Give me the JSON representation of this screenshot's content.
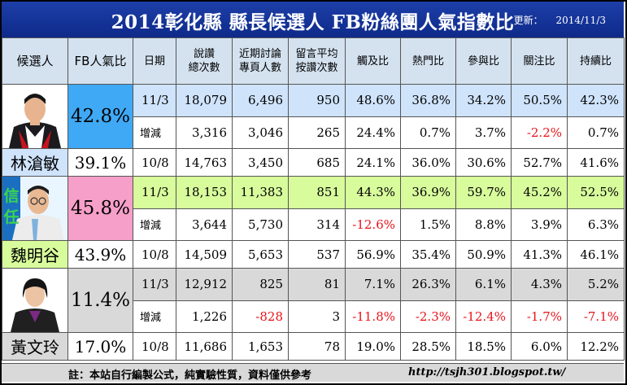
{
  "header": {
    "title": "2014彰化縣 縣長候選人 FB粉絲團人氣指數比",
    "update_label": "更新：",
    "update_date": "2014/11/3"
  },
  "columns": [
    "候選人",
    "FB人氣比",
    "日期",
    "說讚\n總次數",
    "近期討論\n專頁人數",
    "留言平均\n按讚次數",
    "觸及比",
    "熱門比",
    "參與比",
    "關注比",
    "持續比"
  ],
  "candidates": [
    {
      "name": "林滄敏",
      "fb_current": "42.8%",
      "fb_previous": "39.1%",
      "row_color": "#cfe3fb",
      "fb_color": "#3fa9f5",
      "current": {
        "date": "11/3",
        "values": [
          "18,079",
          "6,496",
          "950",
          "48.6%",
          "36.8%",
          "34.2%",
          "50.5%",
          "42.3%"
        ]
      },
      "change": {
        "label": "增減",
        "values": [
          "3,316",
          "3,046",
          "265",
          "24.4%",
          "0.7%",
          "3.7%",
          "-2.2%",
          "0.7%"
        ]
      },
      "previous": {
        "date": "10/8",
        "values": [
          "14,763",
          "3,450",
          "685",
          "24.1%",
          "36.0%",
          "30.6%",
          "52.7%",
          "41.6%"
        ]
      }
    },
    {
      "name": "魏明谷",
      "fb_current": "45.8%",
      "fb_previous": "43.9%",
      "row_color": "#d8fc9c",
      "fb_color": "#f59fc9",
      "photo_text": "信任",
      "current": {
        "date": "11/3",
        "values": [
          "18,153",
          "11,383",
          "851",
          "44.3%",
          "36.9%",
          "59.7%",
          "45.2%",
          "52.5%"
        ]
      },
      "change": {
        "label": "增減",
        "values": [
          "3,644",
          "5,730",
          "314",
          "-12.6%",
          "1.5%",
          "8.8%",
          "3.9%",
          "6.3%"
        ]
      },
      "previous": {
        "date": "10/8",
        "values": [
          "14,509",
          "5,653",
          "537",
          "56.9%",
          "35.4%",
          "50.9%",
          "41.3%",
          "46.1%"
        ]
      }
    },
    {
      "name": "黃文玲",
      "fb_current": "11.4%",
      "fb_previous": "17.0%",
      "row_color": "#d9d9d9",
      "fb_color": "#d9d9d9",
      "current": {
        "date": "11/3",
        "values": [
          "12,912",
          "825",
          "81",
          "7.1%",
          "26.3%",
          "6.1%",
          "4.3%",
          "5.2%"
        ]
      },
      "change": {
        "label": "增減",
        "values": [
          "1,226",
          "-828",
          "3",
          "-11.8%",
          "-2.3%",
          "-12.4%",
          "-1.7%",
          "-7.1%"
        ]
      },
      "previous": {
        "date": "10/8",
        "values": [
          "11,686",
          "1,653",
          "78",
          "19.0%",
          "28.5%",
          "18.5%",
          "6.0%",
          "12.2%"
        ]
      }
    }
  ],
  "footer": {
    "note": "註：本站自行編製公式，純實驗性質，資料僅供參考",
    "url": "http://tsjh301.blogspot.tw/"
  },
  "colors": {
    "header_bg": "#1d3fa8",
    "header_row": "#d4e2f0",
    "negative": "#e8141b",
    "footer_bg": "#d9d9d9"
  }
}
